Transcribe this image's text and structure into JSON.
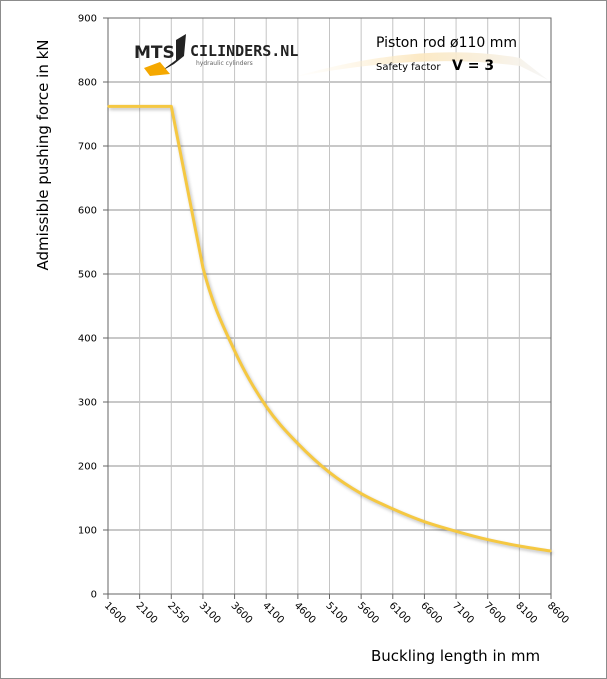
{
  "logo": {
    "mark": "MTS",
    "name": "CILINDERS.NL",
    "tagline": "hydraulic cylinders",
    "accent": "#f5a800"
  },
  "chart_data": {
    "type": "line",
    "title": "",
    "annotation_line1": "Piston rod ø110 mm",
    "annotation_line2_label": "Safety factor",
    "annotation_line2_value": "V = 3",
    "xlabel": "Buckling length in mm",
    "ylabel": "Admissible pushing force in kN",
    "x_tick_labels": [
      "1600",
      "2100",
      "2550",
      "3100",
      "3600",
      "4100",
      "4600",
      "5100",
      "5600",
      "6100",
      "6600",
      "7100",
      "7600",
      "8100",
      "8600"
    ],
    "ylim": [
      0,
      900
    ],
    "y_ticks": [
      0,
      100,
      200,
      300,
      400,
      500,
      600,
      700,
      800,
      900
    ],
    "grid": "horizontal and vertical",
    "series": [
      {
        "color": "#f5c842",
        "values": [
          762,
          762,
          762,
          510,
          380,
          293,
          235,
          190,
          157,
          133,
          113,
          98,
          85,
          75,
          67
        ]
      }
    ]
  }
}
